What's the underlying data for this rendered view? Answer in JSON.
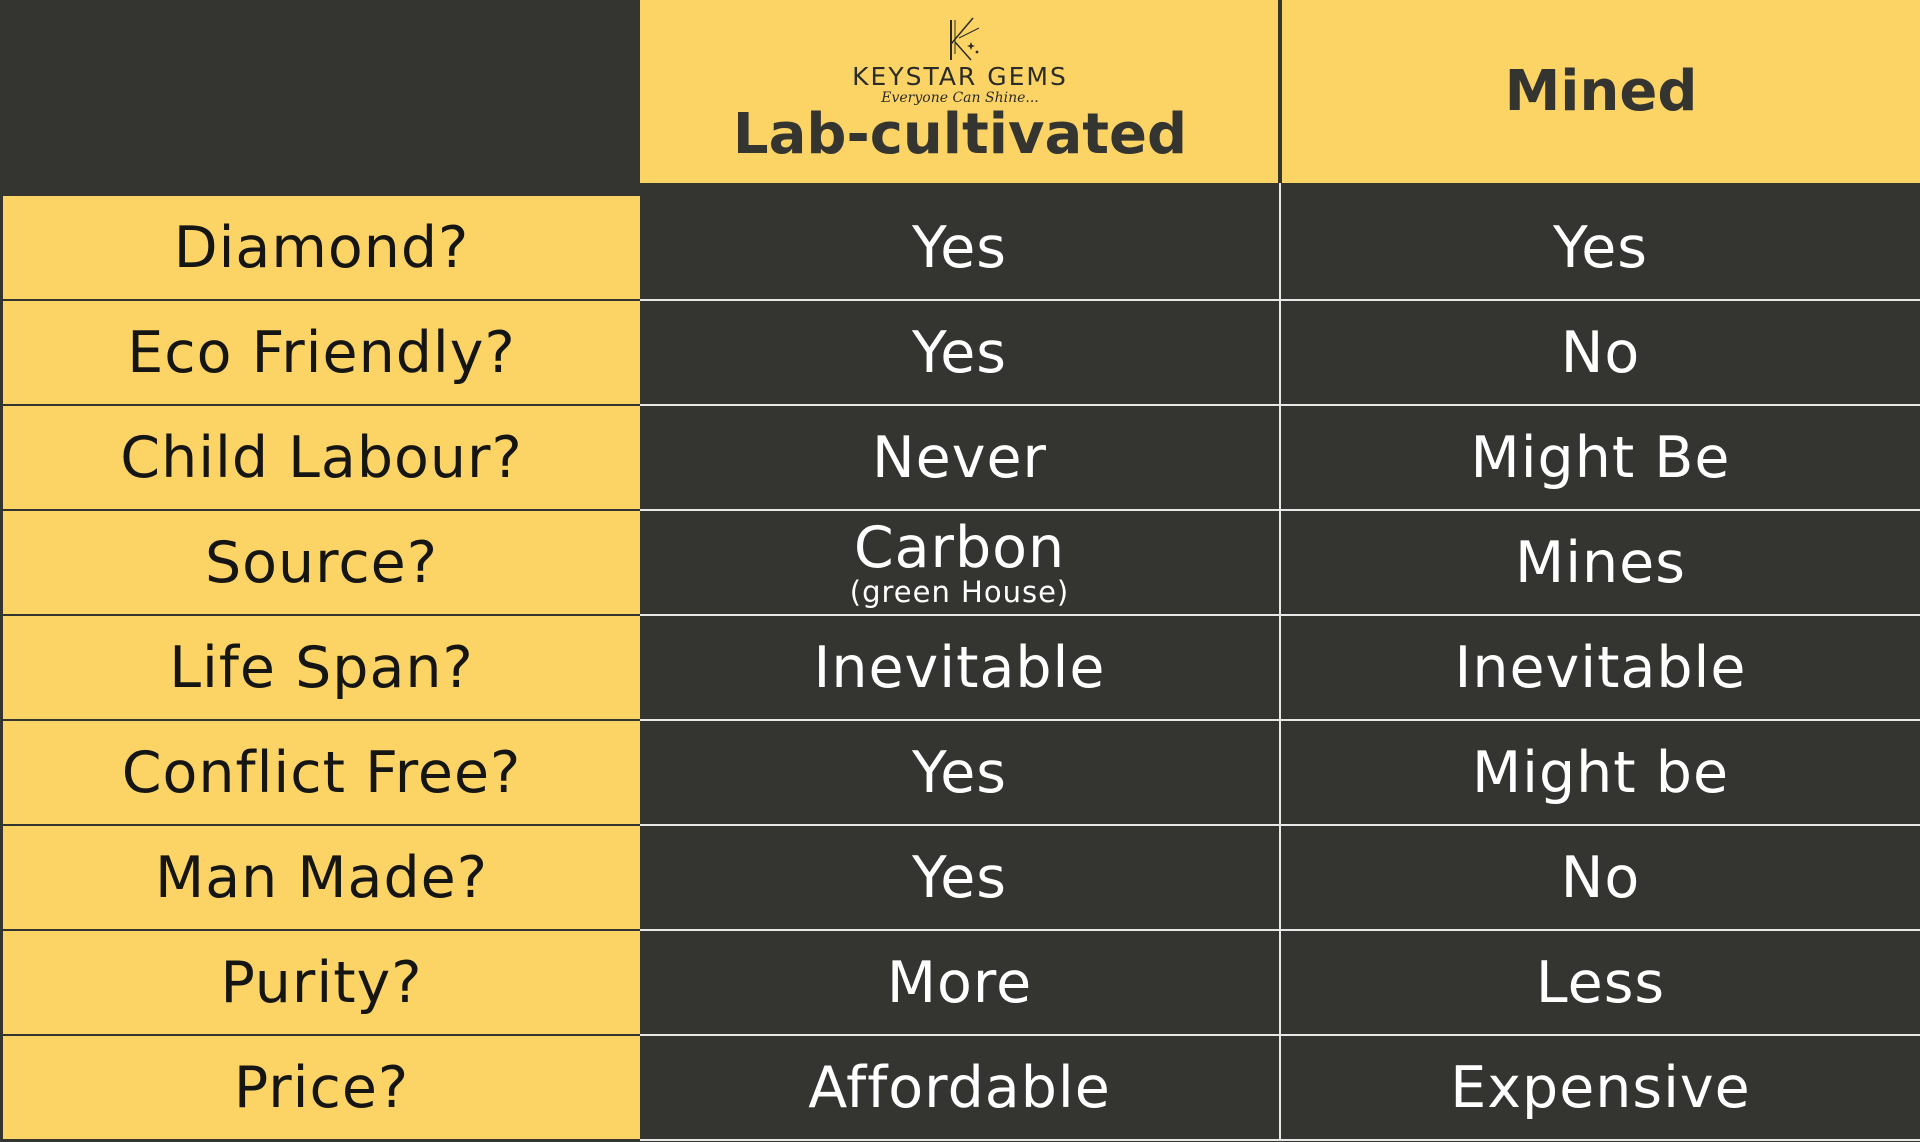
{
  "brand": {
    "name": "KEYSTAR GEMS",
    "tagline": "Everyone Can Shine..."
  },
  "columns": {
    "lab": "Lab-cultivated",
    "mined": "Mined"
  },
  "rows": [
    {
      "label": "Diamond?",
      "lab": "Yes",
      "lab_sub": "",
      "mined": "Yes"
    },
    {
      "label": "Eco Friendly?",
      "lab": "Yes",
      "lab_sub": "",
      "mined": "No"
    },
    {
      "label": "Child Labour?",
      "lab": "Never",
      "lab_sub": "",
      "mined": "Might Be"
    },
    {
      "label": "Source?",
      "lab": "Carbon",
      "lab_sub": "(green House)",
      "mined": "Mines"
    },
    {
      "label": "Life Span?",
      "lab": "Inevitable",
      "lab_sub": "",
      "mined": "Inevitable"
    },
    {
      "label": "Conflict Free?",
      "lab": "Yes",
      "lab_sub": "",
      "mined": "Might be"
    },
    {
      "label": "Man Made?",
      "lab": "Yes",
      "lab_sub": "",
      "mined": "No"
    },
    {
      "label": "Purity?",
      "lab": "More",
      "lab_sub": "",
      "mined": "Less"
    },
    {
      "label": "Price?",
      "lab": "Affordable",
      "lab_sub": "",
      "mined": "Expensive"
    }
  ],
  "colors": {
    "accent_yellow": "#fcd466",
    "dark": "#343431",
    "text_light": "#ffffff",
    "divider": "#e8e8e8"
  },
  "icons": {
    "logo": "keystar-k-star-logo-icon"
  }
}
